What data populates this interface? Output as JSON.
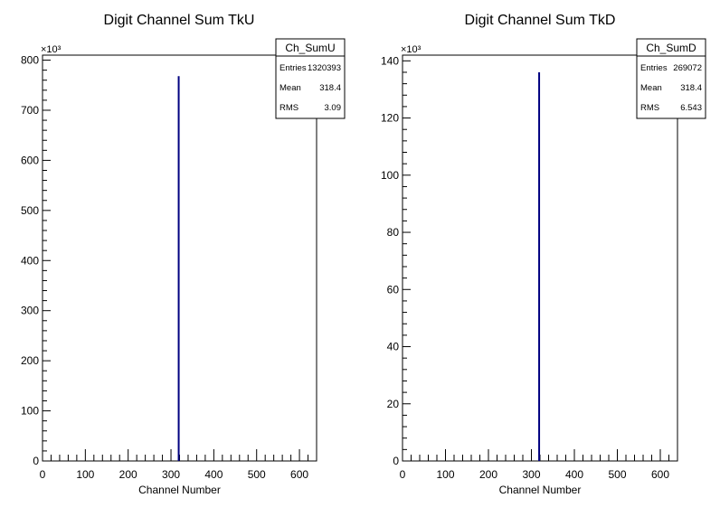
{
  "chart_data": [
    {
      "type": "bar",
      "title": "Digit Channel Sum TkU",
      "xlabel": "Channel Number",
      "ylabel": "",
      "y_multiplier_label": "×10³",
      "xlim": [
        0,
        640
      ],
      "ylim": [
        0,
        810
      ],
      "x_ticks": [
        0,
        100,
        200,
        300,
        400,
        500,
        600
      ],
      "y_ticks": [
        0,
        100,
        200,
        300,
        400,
        500,
        600,
        700,
        800
      ],
      "x": [
        318
      ],
      "values": [
        768
      ],
      "color": "#000080",
      "stats_box": {
        "name": "Ch_SumU",
        "rows": [
          {
            "label": "Entries",
            "value": "1320393"
          },
          {
            "label": "Mean",
            "value": "318.4"
          },
          {
            "label": "RMS",
            "value": "3.09"
          }
        ]
      }
    },
    {
      "type": "bar",
      "title": "Digit Channel Sum TkD",
      "xlabel": "Channel Number",
      "ylabel": "",
      "y_multiplier_label": "×10³",
      "xlim": [
        0,
        640
      ],
      "ylim": [
        0,
        142
      ],
      "x_ticks": [
        0,
        100,
        200,
        300,
        400,
        500,
        600
      ],
      "y_ticks": [
        0,
        20,
        40,
        60,
        80,
        100,
        120,
        140
      ],
      "x": [
        318
      ],
      "values": [
        136
      ],
      "color": "#000080",
      "stats_box": {
        "name": "Ch_SumD",
        "rows": [
          {
            "label": "Entries",
            "value": "269072"
          },
          {
            "label": "Mean",
            "value": "318.4"
          },
          {
            "label": "RMS",
            "value": "6.543"
          }
        ]
      }
    }
  ]
}
